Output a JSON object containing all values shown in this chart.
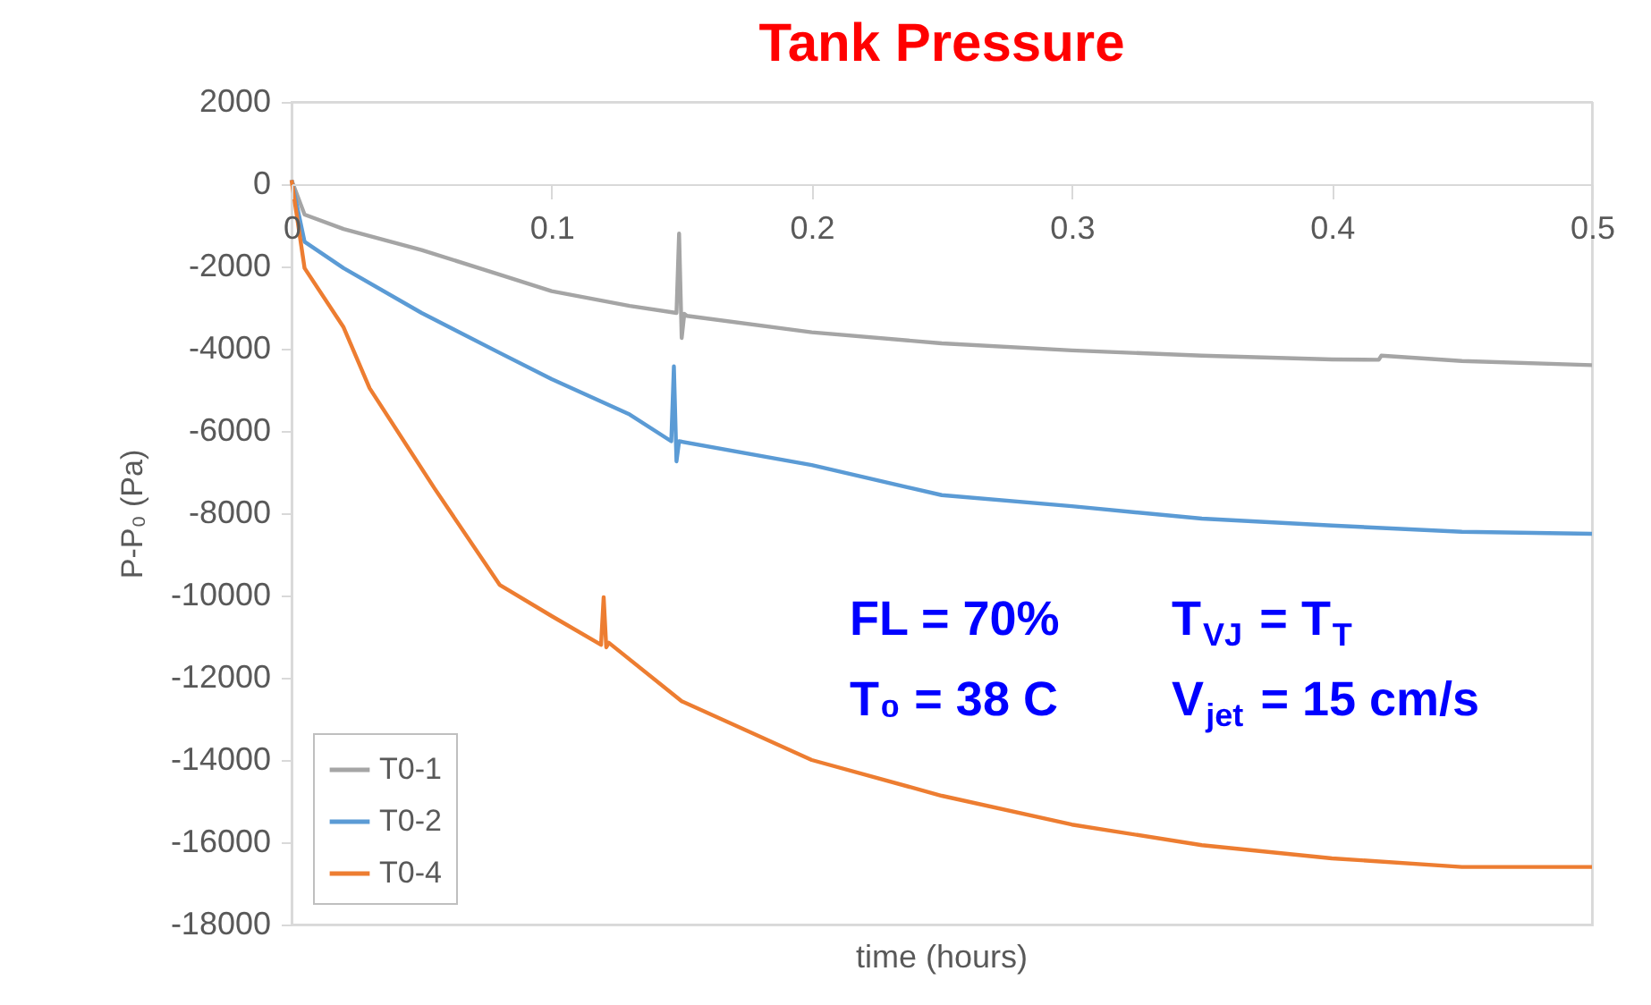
{
  "chart_data": {
    "type": "line",
    "title": "Tank Pressure",
    "xlabel": "time (hours)",
    "ylabel": "P-P₀ (Pa)",
    "xlim": [
      0,
      0.5
    ],
    "xticks": [
      0,
      0.1,
      0.2,
      0.3,
      0.4,
      0.5
    ],
    "ylim": [
      -18000,
      2000
    ],
    "yticks": [
      -18000,
      -16000,
      -14000,
      -12000,
      -10000,
      -8000,
      -6000,
      -4000,
      -2000,
      0,
      2000
    ],
    "grid": false,
    "legend": "bottom left",
    "marker": "none",
    "line_style": "solid",
    "annotations": [
      "FL = 70%",
      "T$_{VJ}$ = T$_{T}$",
      "T₀ = 38 C",
      "V$_{jet}$ = 15 cm/s"
    ],
    "series": [
      {
        "name": "T0-1",
        "color": "#a5a5a5",
        "x": [
          0,
          0.005,
          0.02,
          0.05,
          0.08,
          0.1,
          0.13,
          0.148,
          0.149,
          0.15,
          0.151,
          0.152,
          0.2,
          0.25,
          0.3,
          0.35,
          0.4,
          0.418,
          0.419,
          0.45,
          0.5
        ],
        "values": [
          100,
          -740,
          -1090,
          -1600,
          -2200,
          -2600,
          -2960,
          -3130,
          -1200,
          -3740,
          -3150,
          -3200,
          -3600,
          -3870,
          -4040,
          -4170,
          -4260,
          -4270,
          -4170,
          -4300,
          -4400
        ]
      },
      {
        "name": "T0-2",
        "color": "#5b9bd5",
        "x": [
          0,
          0.005,
          0.02,
          0.05,
          0.08,
          0.1,
          0.13,
          0.146,
          0.147,
          0.148,
          0.149,
          0.2,
          0.25,
          0.3,
          0.35,
          0.4,
          0.45,
          0.5
        ],
        "values": [
          100,
          -1400,
          -2040,
          -3130,
          -4100,
          -4740,
          -5600,
          -6250,
          -4430,
          -6740,
          -6250,
          -6830,
          -7560,
          -7830,
          -8130,
          -8300,
          -8450,
          -8500
        ]
      },
      {
        "name": "T0-4",
        "color": "#ed7d31",
        "x": [
          0,
          0.005,
          0.02,
          0.03,
          0.055,
          0.08,
          0.1,
          0.119,
          0.12,
          0.121,
          0.122,
          0.15,
          0.2,
          0.25,
          0.3,
          0.35,
          0.4,
          0.45,
          0.5
        ],
        "values": [
          100,
          -2040,
          -3480,
          -4960,
          -7400,
          -9740,
          -10500,
          -11200,
          -10040,
          -11260,
          -11150,
          -12570,
          -14000,
          -14870,
          -15570,
          -16070,
          -16390,
          -16600,
          -16600
        ]
      }
    ]
  }
}
